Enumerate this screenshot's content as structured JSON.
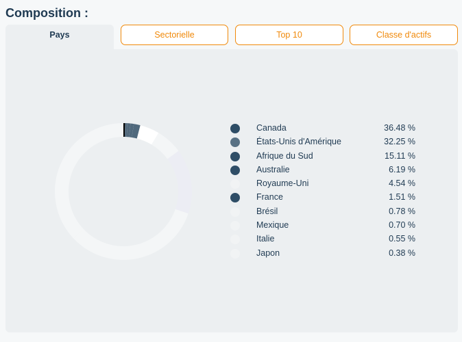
{
  "section": {
    "title": "Composition :"
  },
  "tabs": [
    {
      "label": "Pays",
      "active": true
    },
    {
      "label": "Sectorielle",
      "active": false
    },
    {
      "label": "Top 10",
      "active": false
    },
    {
      "label": "Classe d'actifs",
      "active": false
    }
  ],
  "colors": {
    "accent": "#f0890a",
    "text": "#1f3a52",
    "panel": "#eceff1"
  },
  "chart_data": {
    "type": "pie",
    "donut": true,
    "categories": [
      "Canada",
      "États-Unis d'Amérique",
      "Afrique du Sud",
      "Australie",
      "Royaume-Uni",
      "France",
      "Brésil",
      "Mexique",
      "Italie",
      "Japon"
    ],
    "values": [
      36.48,
      32.25,
      15.11,
      6.19,
      4.54,
      1.51,
      0.78,
      0.7,
      0.55,
      0.38
    ],
    "value_labels": [
      "36.48 %",
      "32.25 %",
      "15.11 %",
      "6.19 %",
      "4.54 %",
      "1.51 %",
      "0.78 %",
      "0.70 %",
      "0.55 %",
      "0.38 %"
    ],
    "colors": [
      "#f4f6f7",
      "#f4f6f7",
      "#ecedf4",
      "#f4f6f7",
      "#ffffff",
      "#50697d",
      "#50697d",
      "#52697c",
      "#52697c",
      "#000000"
    ],
    "legend_colors": [
      "#2e4d66",
      "#587184",
      "#2e4d66",
      "#2e4d66",
      "#f1f3f4",
      "#2e4d66",
      "#f1f3f4",
      "#f1f3f4",
      "#f1f3f4",
      "#f1f3f4"
    ],
    "legend_position": "right"
  }
}
